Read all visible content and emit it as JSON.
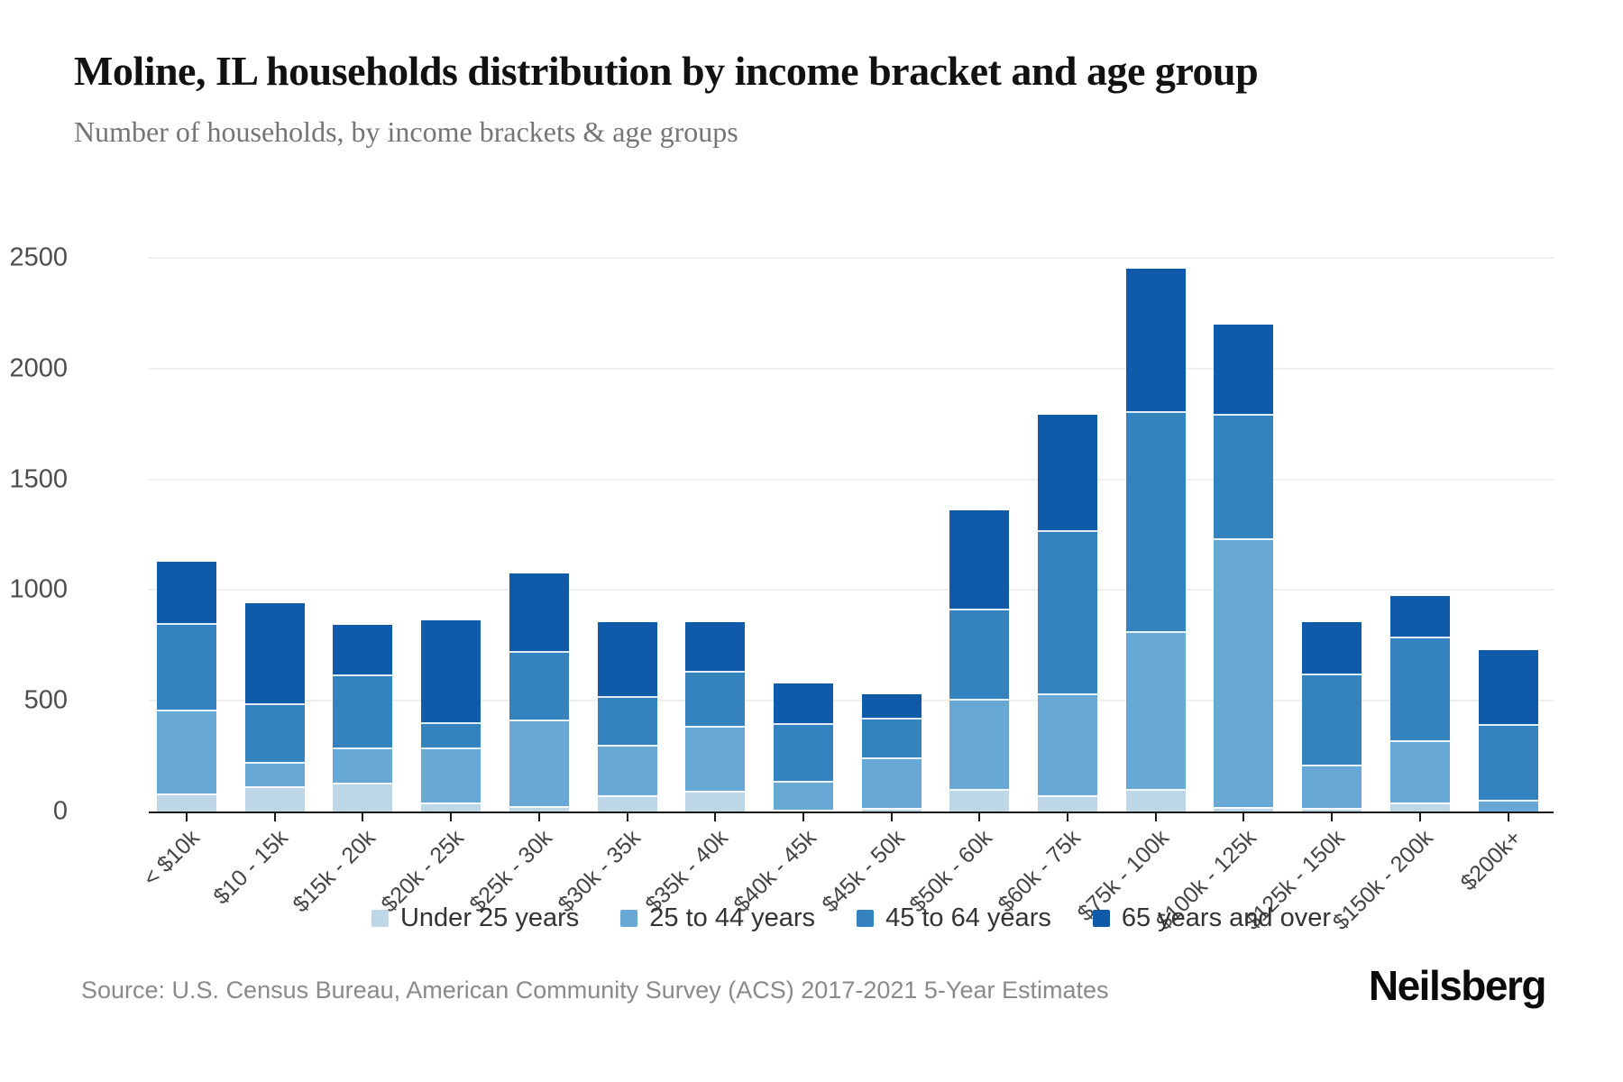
{
  "header": {
    "title": "Moline, IL households distribution by income bracket and age group",
    "subtitle": "Number of households, by income brackets & age groups"
  },
  "chart_data": {
    "type": "bar",
    "stacked": true,
    "title": "Moline, IL households distribution by income bracket and age group",
    "xlabel": "",
    "ylabel": "Number of households",
    "ylim": [
      0,
      2500
    ],
    "yticks": [
      0,
      500,
      1000,
      1500,
      2000,
      2500
    ],
    "grid": true,
    "legend_position": "bottom",
    "categories": [
      "< $10k",
      "$10 - 15k",
      "$15k - 20k",
      "$20k - 25k",
      "$25k - 30k",
      "$30k - 35k",
      "$35k - 40k",
      "$40k - 45k",
      "$45k - 50k",
      "$50k - 60k",
      "$60k - 75k",
      "$75k - 100k",
      "$100k - 125k",
      "$125k - 150k",
      "$150k - 200k",
      "$200k+"
    ],
    "series": [
      {
        "name": "Under 25 years",
        "color": "#bdd7e7",
        "values": [
          80,
          115,
          130,
          40,
          25,
          75,
          95,
          10,
          15,
          100,
          75,
          100,
          20,
          15,
          40,
          0
        ]
      },
      {
        "name": "25 to 44 years",
        "color": "#67a8d4",
        "values": [
          380,
          110,
          160,
          250,
          390,
          225,
          290,
          130,
          230,
          410,
          460,
          715,
          1215,
          195,
          280,
          55
        ]
      },
      {
        "name": "45 to 64 years",
        "color": "#3483bf",
        "values": [
          390,
          265,
          330,
          115,
          310,
          220,
          250,
          260,
          180,
          405,
          735,
          995,
          560,
          415,
          470,
          340
        ]
      },
      {
        "name": "65 years and over",
        "color": "#0f5aa9",
        "values": [
          280,
          450,
          225,
          460,
          350,
          335,
          220,
          180,
          105,
          445,
          520,
          640,
          405,
          230,
          185,
          335
        ]
      }
    ]
  },
  "footer": {
    "source": "Source: U.S. Census Bureau, American Community Survey (ACS) 2017-2021 5-Year Estimates",
    "brand": "Neilsberg"
  }
}
